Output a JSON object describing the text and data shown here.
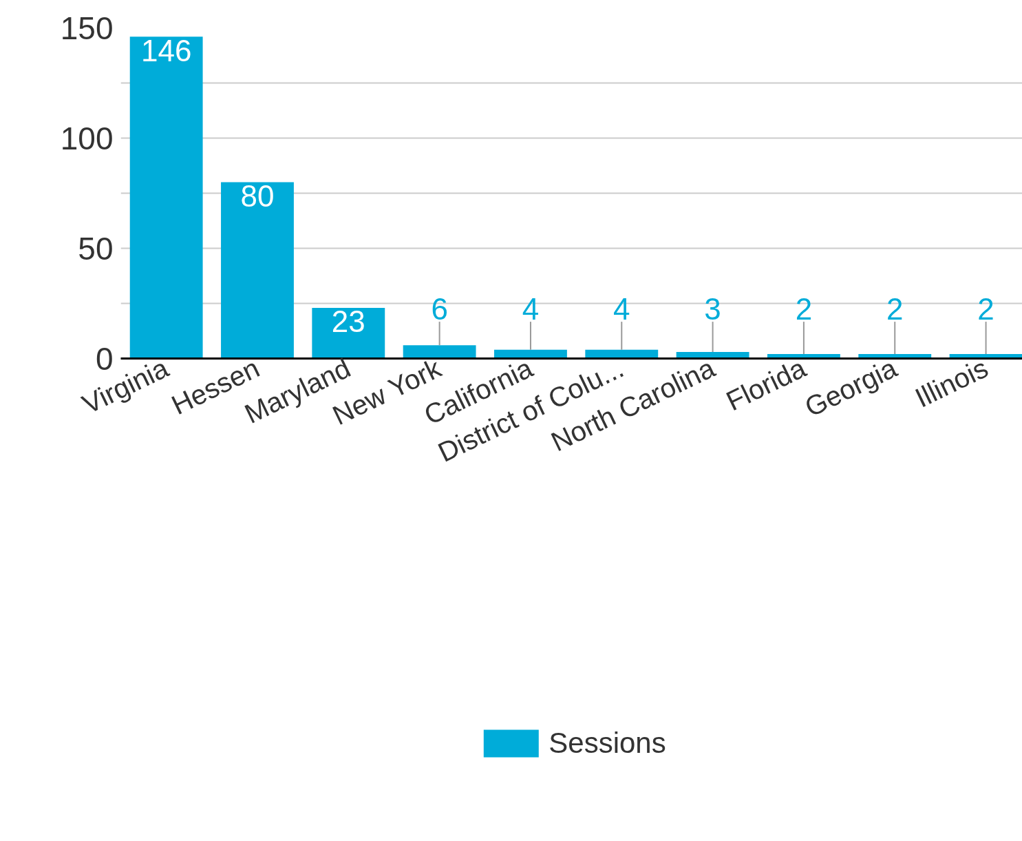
{
  "chart_data": {
    "type": "bar",
    "categories": [
      "Virginia",
      "Hessen",
      "Maryland",
      "New York",
      "California",
      "District of Colu...",
      "North Carolina",
      "Florida",
      "Georgia",
      "Illinois"
    ],
    "series": [
      {
        "name": "Sessions",
        "color": "#00acd9",
        "values": [
          146,
          80,
          23,
          6,
          4,
          4,
          3,
          2,
          2,
          2
        ]
      }
    ],
    "ylim": [
      0,
      150
    ],
    "yticks": [
      0,
      {
        "value": 25,
        "label": null
      },
      50,
      {
        "value": 75,
        "label": null
      },
      100,
      {
        "value": 125,
        "label": null
      },
      150
    ],
    "grid": "y",
    "legend": "bottom",
    "data_labels": true
  }
}
